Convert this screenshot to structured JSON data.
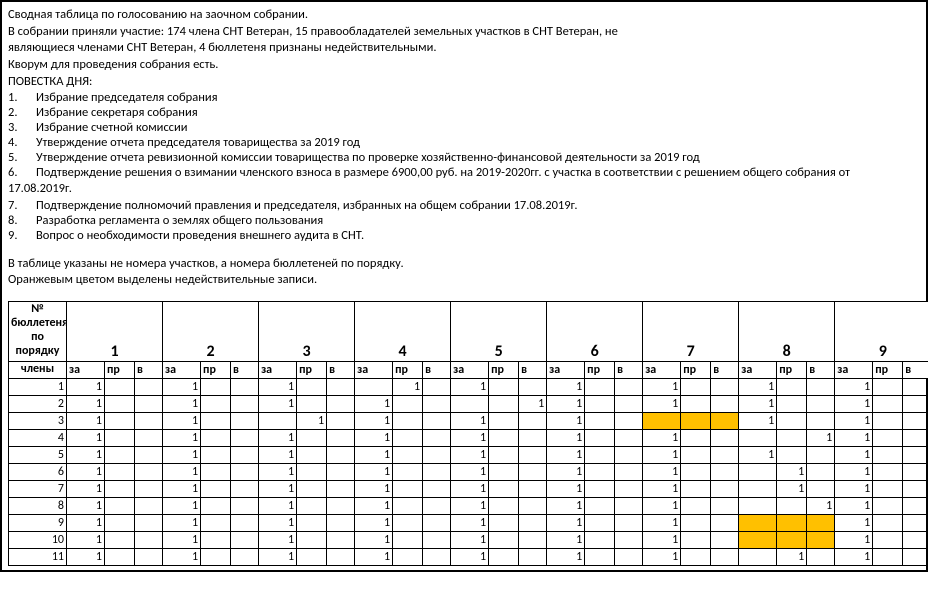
{
  "preamble": {
    "p1": "Сводная таблица по голосованию на заочном собрании.",
    "p2": "В собрании приняли участие:  174  члена СНТ Ветеран, 15   правообладателей земельных участков в СНТ Ветеран, не",
    "p3": "являющиеся членами СНТ Ветеран, 4   бюллетеня признаны недействительными.",
    "p4": "Кворум для проведения собрания есть.",
    "p5": "ПОВЕСТКА ДНЯ:"
  },
  "agenda": [
    {
      "n": "1",
      "t": "Избрание председателя собрания"
    },
    {
      "n": "2",
      "t": "Избрание секретаря собрания"
    },
    {
      "n": "3",
      "t": "Избрание счетной комиссии"
    },
    {
      "n": "4",
      "t": "Утверждение отчета председателя товарищества за 2019 год"
    },
    {
      "n": "5",
      "t": "Утверждение отчета ревизионной комиссии товарищества по проверке хозяйственно-финансовой деятельности за 2019 год"
    },
    {
      "n": "6",
      "t": "Подтверждение решения о взимании членского взноса в размере 6900,00 руб. на 2019-2020гг.  с участка в соответствии с решением общего собрания от",
      "cont": "17.08.2019г."
    },
    {
      "n": "7",
      "t": "Подтверждение полномочий правления и председателя, избранных на общем собрании 17.08.2019г."
    },
    {
      "n": "8",
      "t": "Разработка регламента о землях общего пользования"
    },
    {
      "n": "9",
      "t": "Вопрос о необходимости проведения внешнего аудита в СНТ."
    }
  ],
  "notes": {
    "n1": "В таблице указаны не номера участков, а номера бюллетеней по порядку.",
    "n2": "Оранжевым цветом выделены недействительные записи."
  },
  "table": {
    "corner_line1": "№",
    "corner_line2": "бюллетеня",
    "corner_line3": "по",
    "corner_line4": "порядку",
    "members_label": "члены",
    "questions": [
      "1",
      "2",
      "3",
      "4",
      "5",
      "6",
      "7",
      "8",
      "9"
    ],
    "subcols": [
      "за",
      "пр",
      "в"
    ],
    "rows": [
      {
        "n": "1",
        "cells": [
          [
            "1",
            "",
            ""
          ],
          [
            "1",
            "",
            ""
          ],
          [
            "1",
            "",
            ""
          ],
          [
            "",
            "1",
            ""
          ],
          [
            "1",
            "",
            ""
          ],
          [
            "1",
            "",
            ""
          ],
          [
            "1",
            "",
            ""
          ],
          [
            "1",
            "",
            ""
          ],
          [
            "1",
            "",
            ""
          ]
        ]
      },
      {
        "n": "2",
        "cells": [
          [
            "1",
            "",
            ""
          ],
          [
            "1",
            "",
            ""
          ],
          [
            "1",
            "",
            ""
          ],
          [
            "1",
            "",
            ""
          ],
          [
            "",
            "",
            "1"
          ],
          [
            "1",
            "",
            ""
          ],
          [
            "1",
            "",
            ""
          ],
          [
            "1",
            "",
            ""
          ],
          [
            "1",
            "",
            ""
          ]
        ]
      },
      {
        "n": "3",
        "cells": [
          [
            "1",
            "",
            ""
          ],
          [
            "1",
            "",
            ""
          ],
          [
            "",
            "1",
            ""
          ],
          [
            "1",
            "",
            ""
          ],
          [
            "1",
            "",
            ""
          ],
          [
            "1",
            "",
            ""
          ],
          [
            "",
            "",
            ""
          ],
          [
            "1",
            "",
            ""
          ],
          [
            "1",
            "",
            ""
          ]
        ],
        "orange": [
          6
        ]
      },
      {
        "n": "4",
        "cells": [
          [
            "1",
            "",
            ""
          ],
          [
            "1",
            "",
            ""
          ],
          [
            "1",
            "",
            ""
          ],
          [
            "1",
            "",
            ""
          ],
          [
            "1",
            "",
            ""
          ],
          [
            "1",
            "",
            ""
          ],
          [
            "1",
            "",
            ""
          ],
          [
            "",
            "",
            "1"
          ],
          [
            "1",
            "",
            ""
          ]
        ]
      },
      {
        "n": "5",
        "cells": [
          [
            "1",
            "",
            ""
          ],
          [
            "1",
            "",
            ""
          ],
          [
            "1",
            "",
            ""
          ],
          [
            "1",
            "",
            ""
          ],
          [
            "1",
            "",
            ""
          ],
          [
            "1",
            "",
            ""
          ],
          [
            "1",
            "",
            ""
          ],
          [
            "1",
            "",
            ""
          ],
          [
            "1",
            "",
            ""
          ]
        ]
      },
      {
        "n": "6",
        "cells": [
          [
            "1",
            "",
            ""
          ],
          [
            "1",
            "",
            ""
          ],
          [
            "1",
            "",
            ""
          ],
          [
            "1",
            "",
            ""
          ],
          [
            "1",
            "",
            ""
          ],
          [
            "1",
            "",
            ""
          ],
          [
            "1",
            "",
            ""
          ],
          [
            "",
            "1",
            ""
          ],
          [
            "1",
            "",
            ""
          ]
        ]
      },
      {
        "n": "7",
        "cells": [
          [
            "1",
            "",
            ""
          ],
          [
            "1",
            "",
            ""
          ],
          [
            "1",
            "",
            ""
          ],
          [
            "1",
            "",
            ""
          ],
          [
            "1",
            "",
            ""
          ],
          [
            "1",
            "",
            ""
          ],
          [
            "1",
            "",
            ""
          ],
          [
            "",
            "1",
            ""
          ],
          [
            "1",
            "",
            ""
          ]
        ]
      },
      {
        "n": "8",
        "cells": [
          [
            "1",
            "",
            ""
          ],
          [
            "1",
            "",
            ""
          ],
          [
            "1",
            "",
            ""
          ],
          [
            "1",
            "",
            ""
          ],
          [
            "1",
            "",
            ""
          ],
          [
            "1",
            "",
            ""
          ],
          [
            "1",
            "",
            ""
          ],
          [
            "",
            "",
            "1"
          ],
          [
            "1",
            "",
            ""
          ]
        ]
      },
      {
        "n": "9",
        "cells": [
          [
            "1",
            "",
            ""
          ],
          [
            "1",
            "",
            ""
          ],
          [
            "1",
            "",
            ""
          ],
          [
            "1",
            "",
            ""
          ],
          [
            "1",
            "",
            ""
          ],
          [
            "1",
            "",
            ""
          ],
          [
            "1",
            "",
            ""
          ],
          [
            "",
            "",
            ""
          ],
          [
            "1",
            "",
            ""
          ]
        ],
        "orange": [
          7
        ]
      },
      {
        "n": "10",
        "cells": [
          [
            "1",
            "",
            ""
          ],
          [
            "1",
            "",
            ""
          ],
          [
            "1",
            "",
            ""
          ],
          [
            "1",
            "",
            ""
          ],
          [
            "1",
            "",
            ""
          ],
          [
            "1",
            "",
            ""
          ],
          [
            "1",
            "",
            ""
          ],
          [
            "",
            "",
            ""
          ],
          [
            "1",
            "",
            ""
          ]
        ],
        "orange": [
          7
        ]
      },
      {
        "n": "11",
        "cells": [
          [
            "1",
            "",
            ""
          ],
          [
            "1",
            "",
            ""
          ],
          [
            "1",
            "",
            ""
          ],
          [
            "1",
            "",
            ""
          ],
          [
            "1",
            "",
            ""
          ],
          [
            "1",
            "",
            ""
          ],
          [
            "1",
            "",
            ""
          ],
          [
            "",
            "1",
            ""
          ],
          [
            "1",
            "",
            ""
          ]
        ]
      }
    ],
    "highlight_color": "#ffc000"
  }
}
